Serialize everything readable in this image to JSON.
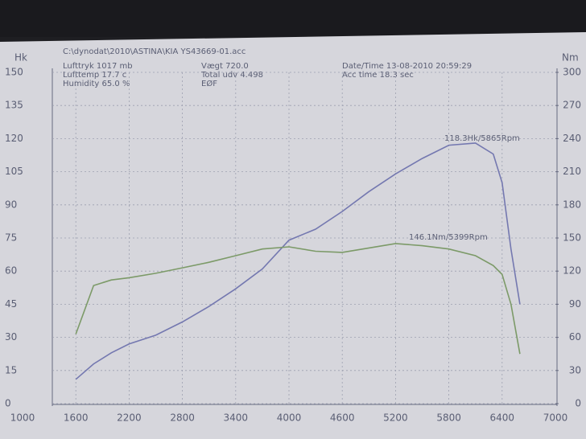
{
  "chart_data": {
    "type": "line",
    "file": "C:\\dynodat\\2010\\ASTINA\\KIA YS43669-01.acc",
    "info": [
      "Lufttryk  1017 mb",
      "Lufttemp  17.7 c",
      "Humidity  65.0 %",
      "Vægt     720.0",
      "Total udv 4.498",
      "EØF",
      "Date/Time  13-08-2010 20:59:29",
      "Acc time   18.3 sec"
    ],
    "y_label": "Hk",
    "y2_label": "Nm",
    "annotations": [
      "118.3Hk/5865Rpm",
      "146.1Nm/5399Rpm"
    ],
    "x": [
      1600,
      1800,
      2000,
      2200,
      2500,
      2800,
      3100,
      3400,
      3700,
      4000,
      4300,
      4600,
      4900,
      5200,
      5500,
      5800,
      6100,
      6300,
      6400,
      6500,
      6600
    ],
    "series": [
      {
        "name": "Hk",
        "color": "#7478b0",
        "values": [
          11,
          18,
          23,
          27,
          31,
          37,
          44,
          52,
          61,
          74,
          79,
          87,
          96,
          104,
          111,
          117,
          118,
          113,
          100,
          70,
          45
        ]
      },
      {
        "name": "Nm",
        "color": "#7c9a68",
        "axis": "y2",
        "values": [
          63,
          107,
          112,
          114,
          118,
          123,
          128,
          134,
          140,
          142,
          138,
          137,
          141,
          145,
          143,
          140,
          134,
          125,
          117,
          90,
          45
        ]
      }
    ],
    "xlim": [
      1000,
      7000
    ],
    "xticks": [
      1000,
      1600,
      2200,
      2800,
      3400,
      4000,
      4600,
      5200,
      5800,
      6400,
      7000
    ],
    "ylim": [
      0,
      150
    ],
    "yticks": [
      0,
      15,
      30,
      45,
      60,
      75,
      90,
      105,
      120,
      135,
      150
    ],
    "y2lim": [
      0,
      300
    ],
    "y2ticks": [
      0,
      30,
      60,
      90,
      120,
      150,
      180,
      210,
      240,
      270,
      300
    ],
    "grid": true
  }
}
